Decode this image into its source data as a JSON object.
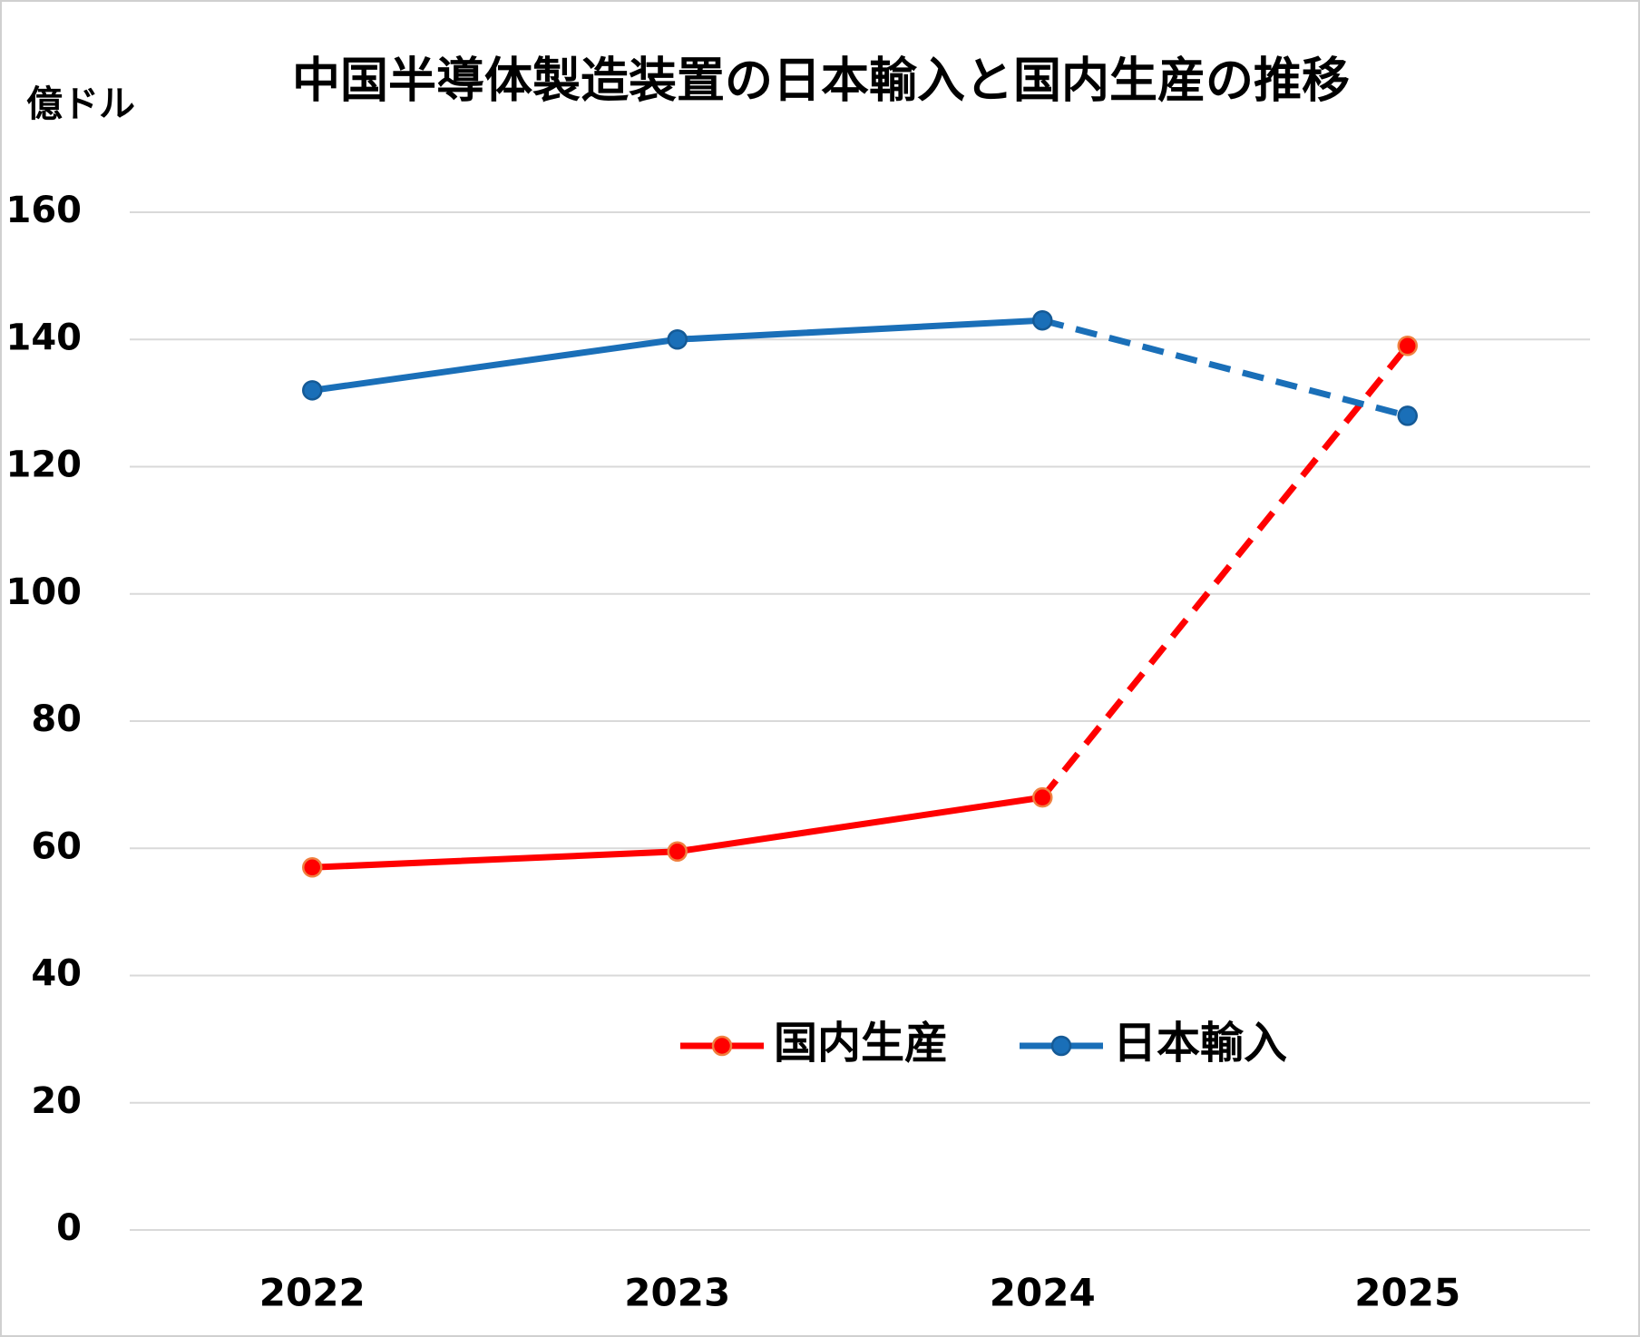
{
  "chart_data": {
    "type": "line",
    "title": "中国半導体製造装置の日本輸入と国内生産の推移",
    "y_label": "億ドル",
    "categories": [
      "2022",
      "2023",
      "2024",
      "2025"
    ],
    "series": [
      {
        "name": "国内生産",
        "color": "#ff0000",
        "marker_edge_color": "#f08040",
        "dashed_last": true,
        "values": [
          57,
          59.5,
          68,
          139
        ]
      },
      {
        "name": "日本輸入",
        "color": "#1a6fb8",
        "marker_edge_color": "#155a96",
        "dashed_last": true,
        "values": [
          132,
          140,
          143,
          128
        ]
      }
    ],
    "ylim": [
      0,
      160
    ],
    "yticks": [
      0,
      20,
      40,
      60,
      80,
      100,
      120,
      140,
      160
    ],
    "grid": true
  }
}
